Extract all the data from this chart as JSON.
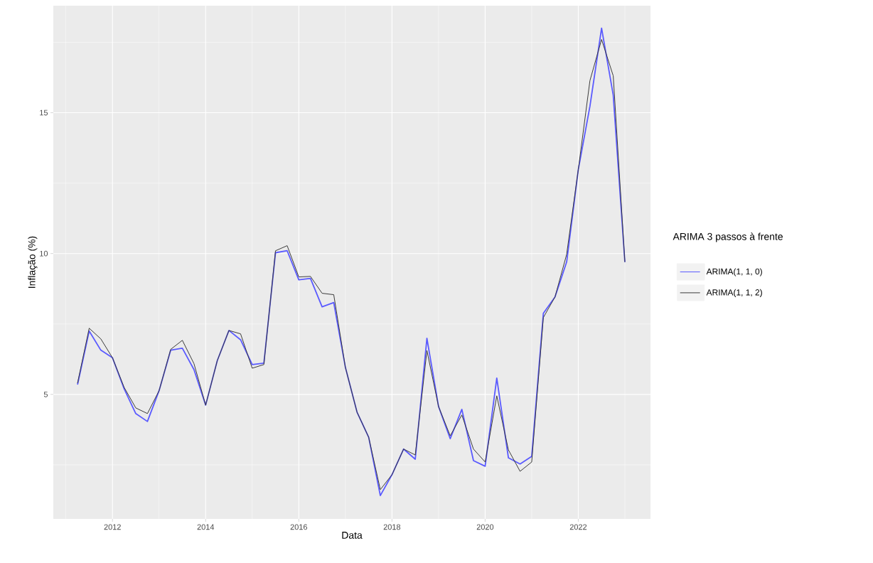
{
  "chart_data": {
    "type": "line",
    "xlabel": "Data",
    "ylabel": "Inflação (%)",
    "legend_title": "ARIMA 3 passos à frente",
    "x": [
      2011.25,
      2011.5,
      2011.75,
      2012.0,
      2012.25,
      2012.5,
      2012.75,
      2013.0,
      2013.25,
      2013.5,
      2013.75,
      2014.0,
      2014.25,
      2014.5,
      2014.75,
      2015.0,
      2015.25,
      2015.5,
      2015.75,
      2016.0,
      2016.25,
      2016.5,
      2016.75,
      2017.0,
      2017.25,
      2017.5,
      2017.75,
      2018.0,
      2018.25,
      2018.5,
      2018.75,
      2019.0,
      2019.25,
      2019.5,
      2019.75,
      2020.0,
      2020.25,
      2020.5,
      2020.75,
      2021.0,
      2021.25,
      2021.5,
      2021.75,
      2022.0,
      2022.25,
      2022.5,
      2022.75,
      2023.0
    ],
    "series": [
      {
        "name": "ARIMA(1, 1, 0)",
        "color": "#5a5aff",
        "values": [
          5.35,
          7.25,
          6.57,
          6.3,
          5.2,
          4.32,
          4.04,
          5.13,
          6.57,
          6.64,
          5.88,
          4.62,
          6.2,
          7.27,
          6.94,
          6.06,
          6.11,
          10.03,
          10.1,
          9.07,
          9.12,
          8.11,
          8.26,
          5.96,
          4.37,
          3.48,
          1.41,
          2.15,
          3.06,
          2.7,
          6.99,
          4.57,
          3.43,
          4.47,
          2.65,
          2.45,
          5.58,
          2.75,
          2.53,
          2.8,
          7.88,
          8.46,
          9.7,
          12.98,
          15.23,
          18.0,
          15.63,
          9.7
        ]
      },
      {
        "name": "ARIMA(1, 1, 2)",
        "color": "#3a3a3a",
        "values": [
          5.4,
          7.35,
          6.97,
          6.3,
          5.25,
          4.52,
          4.32,
          5.13,
          6.6,
          6.92,
          6.09,
          4.62,
          6.2,
          7.27,
          7.15,
          5.93,
          6.06,
          10.1,
          10.28,
          9.17,
          9.19,
          8.59,
          8.54,
          5.96,
          4.37,
          3.48,
          1.62,
          2.15,
          3.06,
          2.85,
          6.56,
          4.57,
          3.53,
          4.27,
          3.06,
          2.6,
          4.95,
          3.03,
          2.27,
          2.6,
          7.73,
          8.46,
          9.97,
          12.98,
          16.14,
          17.6,
          16.31,
          9.7
        ]
      }
    ],
    "xlim": [
      2010.73,
      2023.55
    ],
    "ylim": [
      0.58,
      18.8
    ],
    "xticks": [
      2012,
      2014,
      2016,
      2018,
      2020,
      2022
    ],
    "yticks": [
      5,
      10,
      15
    ],
    "grid": true,
    "legend": "right",
    "marker": "none",
    "line_style": "solid"
  }
}
